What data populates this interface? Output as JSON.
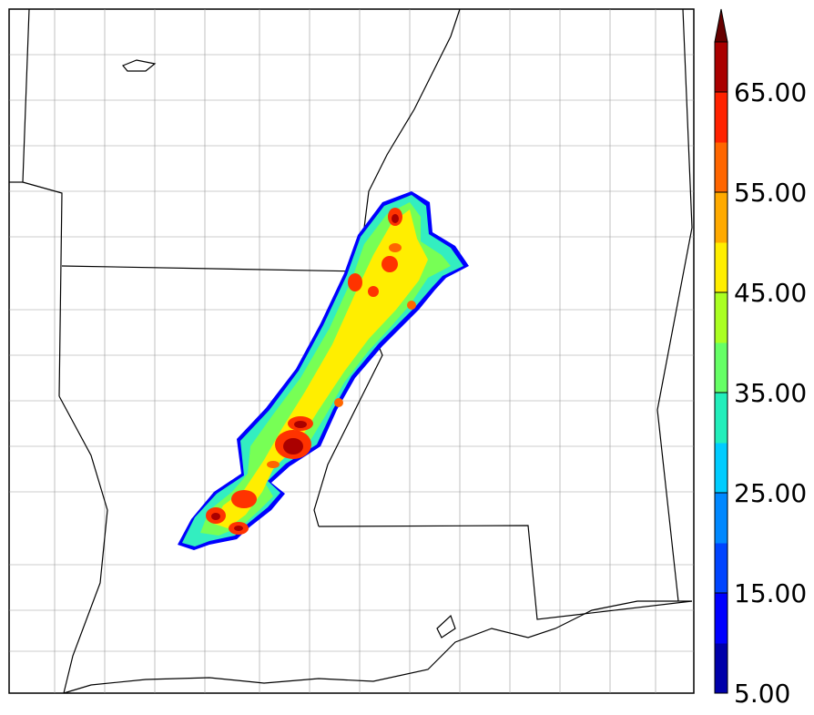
{
  "colorbar": {
    "ticks": [
      "5.00",
      "15.00",
      "25.00",
      "35.00",
      "45.00",
      "55.00",
      "65.00"
    ],
    "levels": [
      5,
      10,
      15,
      20,
      25,
      30,
      35,
      40,
      45,
      50,
      55,
      60,
      65,
      70
    ],
    "colors": [
      "#0000aa",
      "#0000ff",
      "#0044ff",
      "#0088ff",
      "#00ccff",
      "#22eebb",
      "#66ff66",
      "#aaff22",
      "#ffee00",
      "#ffaa00",
      "#ff6600",
      "#ff2200",
      "#aa0000",
      "#660000"
    ],
    "extend": "max"
  },
  "map": {
    "field_colors": {
      "edge": "#0000ff",
      "low": "#33eec0",
      "mid": "#77ff55",
      "high": "#ffee00",
      "core": "#ff3300",
      "peak": "#aa0000"
    }
  }
}
